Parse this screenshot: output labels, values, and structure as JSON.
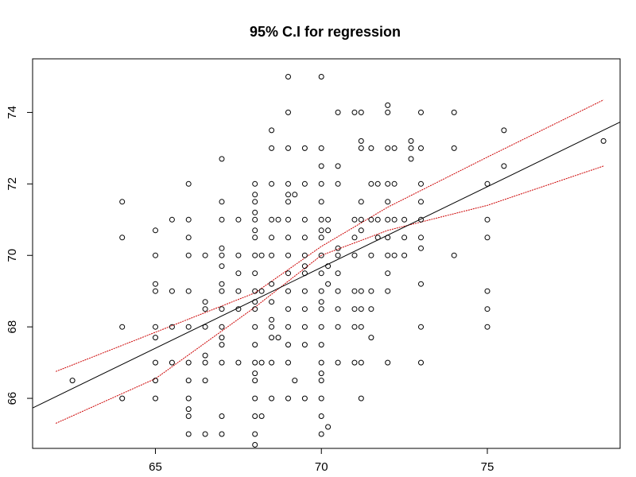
{
  "chart_data": {
    "type": "scatter",
    "title": "95% C.I for regression",
    "xlabel": "",
    "ylabel": "",
    "xlim": [
      61.3,
      79.0
    ],
    "ylim": [
      64.6,
      75.5
    ],
    "x_ticks": [
      65,
      70,
      75
    ],
    "y_ticks": [
      66,
      68,
      70,
      72,
      74
    ],
    "grid": false,
    "colors": {
      "points": "#000000",
      "fit": "#000000",
      "ci": "#cc0000"
    },
    "points": [
      [
        62.5,
        66.5
      ],
      [
        64,
        71.5
      ],
      [
        64,
        70.5
      ],
      [
        64,
        68
      ],
      [
        64,
        66
      ],
      [
        65,
        70.7
      ],
      [
        65,
        70
      ],
      [
        65,
        69.2
      ],
      [
        65,
        69
      ],
      [
        65,
        68
      ],
      [
        65,
        67.7
      ],
      [
        65,
        67
      ],
      [
        65,
        66.5
      ],
      [
        65,
        66
      ],
      [
        65.5,
        71
      ],
      [
        65.5,
        69
      ],
      [
        65.5,
        68
      ],
      [
        65.5,
        67
      ],
      [
        66,
        72
      ],
      [
        66,
        71
      ],
      [
        66,
        70.5
      ],
      [
        66,
        70
      ],
      [
        66,
        69
      ],
      [
        66,
        68
      ],
      [
        66,
        67
      ],
      [
        66,
        66.5
      ],
      [
        66,
        66
      ],
      [
        66,
        65.7
      ],
      [
        66,
        65.5
      ],
      [
        66,
        65
      ],
      [
        66.5,
        70
      ],
      [
        66.5,
        68.7
      ],
      [
        66.5,
        68.5
      ],
      [
        66.5,
        68
      ],
      [
        66.5,
        67.2
      ],
      [
        66.5,
        67
      ],
      [
        66.5,
        66.5
      ],
      [
        66.5,
        65
      ],
      [
        67,
        72.7
      ],
      [
        67,
        71.5
      ],
      [
        67,
        71
      ],
      [
        67,
        70.2
      ],
      [
        67,
        70
      ],
      [
        67,
        69.7
      ],
      [
        67,
        69.2
      ],
      [
        67,
        69
      ],
      [
        67,
        68.5
      ],
      [
        67,
        68
      ],
      [
        67,
        67.7
      ],
      [
        67,
        67.5
      ],
      [
        67,
        67
      ],
      [
        67,
        65.5
      ],
      [
        67,
        65
      ],
      [
        67.5,
        71
      ],
      [
        67.5,
        70
      ],
      [
        67.5,
        69.5
      ],
      [
        67.5,
        69
      ],
      [
        67.5,
        68.5
      ],
      [
        67.5,
        67
      ],
      [
        68,
        72
      ],
      [
        68,
        71.7
      ],
      [
        68,
        71.5
      ],
      [
        68,
        71.2
      ],
      [
        68,
        71
      ],
      [
        68,
        70.7
      ],
      [
        68,
        70.5
      ],
      [
        68,
        70
      ],
      [
        68,
        69.5
      ],
      [
        68,
        69
      ],
      [
        68,
        68.7
      ],
      [
        68,
        68.5
      ],
      [
        68,
        68
      ],
      [
        68,
        67.5
      ],
      [
        68,
        67
      ],
      [
        68,
        66.7
      ],
      [
        68,
        66.5
      ],
      [
        68,
        66
      ],
      [
        68,
        65.5
      ],
      [
        68,
        65
      ],
      [
        68,
        64.7
      ],
      [
        68.2,
        70
      ],
      [
        68.2,
        69
      ],
      [
        68.2,
        67
      ],
      [
        68.2,
        65.5
      ],
      [
        68.5,
        73.5
      ],
      [
        68.5,
        73
      ],
      [
        68.5,
        72
      ],
      [
        68.5,
        71
      ],
      [
        68.5,
        70.5
      ],
      [
        68.5,
        70
      ],
      [
        68.5,
        69.2
      ],
      [
        68.5,
        68.7
      ],
      [
        68.5,
        68.2
      ],
      [
        68.5,
        68
      ],
      [
        68.5,
        67.7
      ],
      [
        68.5,
        67
      ],
      [
        68.5,
        66
      ],
      [
        68.7,
        71
      ],
      [
        68.7,
        67.7
      ],
      [
        69,
        75
      ],
      [
        69,
        74
      ],
      [
        69,
        73
      ],
      [
        69,
        72
      ],
      [
        69,
        71.7
      ],
      [
        69,
        71.5
      ],
      [
        69,
        71
      ],
      [
        69,
        70.5
      ],
      [
        69,
        70
      ],
      [
        69,
        69.5
      ],
      [
        69,
        69
      ],
      [
        69,
        68.5
      ],
      [
        69,
        68
      ],
      [
        69,
        67.5
      ],
      [
        69,
        67
      ],
      [
        69,
        66
      ],
      [
        69.2,
        71.7
      ],
      [
        69.2,
        66.5
      ],
      [
        69.5,
        73
      ],
      [
        69.5,
        72
      ],
      [
        69.5,
        71
      ],
      [
        69.5,
        70.5
      ],
      [
        69.5,
        70
      ],
      [
        69.5,
        69.7
      ],
      [
        69.5,
        69.5
      ],
      [
        69.5,
        69
      ],
      [
        69.5,
        68.5
      ],
      [
        69.5,
        68
      ],
      [
        69.5,
        67.5
      ],
      [
        69.5,
        66
      ],
      [
        70,
        75
      ],
      [
        70,
        73
      ],
      [
        70,
        72.5
      ],
      [
        70,
        72
      ],
      [
        70,
        71.5
      ],
      [
        70,
        71
      ],
      [
        70,
        70.7
      ],
      [
        70,
        70.5
      ],
      [
        70,
        70
      ],
      [
        70,
        69.5
      ],
      [
        70,
        69
      ],
      [
        70,
        68.7
      ],
      [
        70,
        68.5
      ],
      [
        70,
        68
      ],
      [
        70,
        67.5
      ],
      [
        70,
        67
      ],
      [
        70,
        66.7
      ],
      [
        70,
        66.5
      ],
      [
        70,
        66
      ],
      [
        70,
        65.5
      ],
      [
        70,
        65
      ],
      [
        70.2,
        71
      ],
      [
        70.2,
        70.7
      ],
      [
        70.2,
        69.7
      ],
      [
        70.2,
        69.2
      ],
      [
        70.2,
        65.2
      ],
      [
        70.5,
        74
      ],
      [
        70.5,
        72.5
      ],
      [
        70.5,
        72
      ],
      [
        70.5,
        70.2
      ],
      [
        70.5,
        70
      ],
      [
        70.5,
        69.5
      ],
      [
        70.5,
        69
      ],
      [
        70.5,
        68.5
      ],
      [
        70.5,
        68
      ],
      [
        70.5,
        67
      ],
      [
        71,
        74
      ],
      [
        71,
        71
      ],
      [
        71,
        70
      ],
      [
        71,
        69
      ],
      [
        71,
        68.5
      ],
      [
        71,
        68
      ],
      [
        71,
        67
      ],
      [
        71,
        70.5
      ],
      [
        71.2,
        74
      ],
      [
        71.2,
        73.2
      ],
      [
        71.2,
        73
      ],
      [
        71.2,
        71.5
      ],
      [
        71.2,
        71
      ],
      [
        71.2,
        70.7
      ],
      [
        71.2,
        69
      ],
      [
        71.2,
        68.5
      ],
      [
        71.2,
        68
      ],
      [
        71.2,
        67
      ],
      [
        71.2,
        66
      ],
      [
        71.5,
        73
      ],
      [
        71.5,
        72
      ],
      [
        71.5,
        71
      ],
      [
        71.5,
        70
      ],
      [
        71.5,
        69
      ],
      [
        71.5,
        68.5
      ],
      [
        71.5,
        67.7
      ],
      [
        71.7,
        72
      ],
      [
        71.7,
        71
      ],
      [
        71.7,
        70.5
      ],
      [
        72,
        74.2
      ],
      [
        72,
        74
      ],
      [
        72,
        73
      ],
      [
        72,
        72
      ],
      [
        72,
        71.5
      ],
      [
        72,
        71
      ],
      [
        72,
        70.5
      ],
      [
        72,
        70
      ],
      [
        72,
        69.5
      ],
      [
        72,
        69
      ],
      [
        72,
        67
      ],
      [
        72.2,
        73
      ],
      [
        72.2,
        72
      ],
      [
        72.2,
        71
      ],
      [
        72.2,
        70
      ],
      [
        72.5,
        71
      ],
      [
        72.5,
        70.5
      ],
      [
        72.5,
        70
      ],
      [
        72.7,
        73.2
      ],
      [
        72.7,
        73
      ],
      [
        72.7,
        72.7
      ],
      [
        73,
        74
      ],
      [
        73,
        73
      ],
      [
        73,
        72
      ],
      [
        73,
        71.5
      ],
      [
        73,
        71
      ],
      [
        73,
        70.5
      ],
      [
        73,
        70.2
      ],
      [
        73,
        69.2
      ],
      [
        73,
        68
      ],
      [
        73,
        67
      ],
      [
        74,
        74
      ],
      [
        74,
        73
      ],
      [
        74,
        70
      ],
      [
        75,
        72
      ],
      [
        75,
        71
      ],
      [
        75,
        70.5
      ],
      [
        75,
        69
      ],
      [
        75,
        68.5
      ],
      [
        75,
        68
      ],
      [
        75.5,
        73.5
      ],
      [
        75.5,
        72.5
      ],
      [
        78.5,
        73.2
      ]
    ],
    "fit_line": {
      "x": [
        61.3,
        79.0
      ],
      "y": [
        65.73,
        73.73
      ]
    },
    "ci_upper": {
      "x": [
        62,
        65,
        68,
        70,
        72,
        75,
        78.5
      ],
      "y": [
        66.75,
        67.85,
        68.95,
        70.25,
        71.35,
        72.75,
        74.35
      ]
    },
    "ci_lower": {
      "x": [
        62,
        65,
        68,
        70,
        72,
        75,
        78.5
      ],
      "y": [
        65.3,
        66.55,
        68.55,
        70.0,
        70.7,
        71.4,
        72.5
      ]
    }
  }
}
